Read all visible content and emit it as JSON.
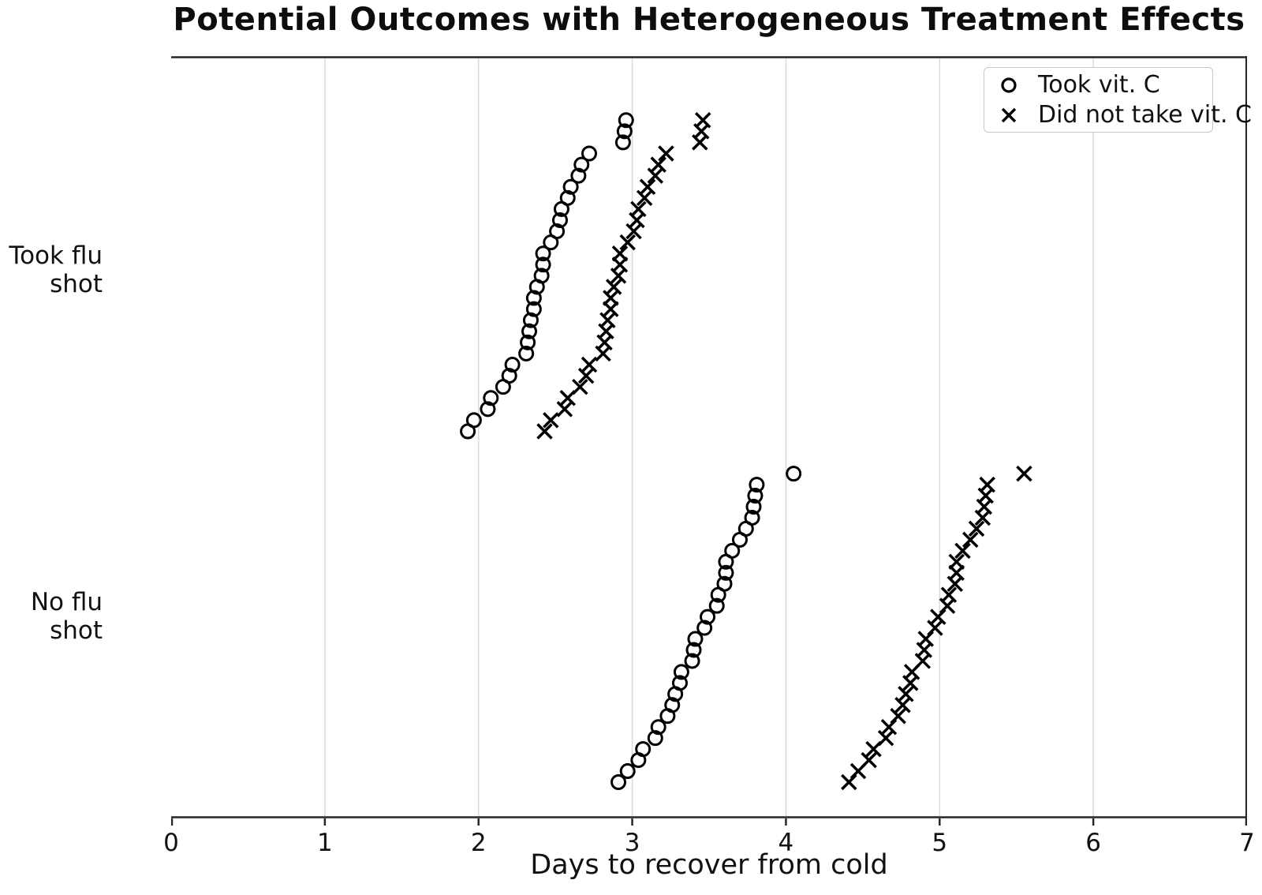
{
  "chart_data": {
    "type": "scatter",
    "title": "Potential Outcomes with Heterogeneous Treatment Effects",
    "xlabel": "Days to recover from cold",
    "xlim": [
      0,
      7
    ],
    "x_ticks": [
      0,
      1,
      2,
      3,
      4,
      5,
      6,
      7
    ],
    "x_gridlines": [
      1,
      2,
      3,
      4,
      5,
      6
    ],
    "grid": "vertical-only",
    "legend_position": "upper-right",
    "colors": {
      "marker": "#000000",
      "grid": "#dcdcdc",
      "spine": "#262626",
      "text": "#111111"
    },
    "legend": [
      {
        "marker": "circle",
        "label": "Took vit. C"
      },
      {
        "marker": "x",
        "label": "Did not take vit. C"
      }
    ],
    "groups": [
      {
        "label_lines": [
          "Took flu",
          "shot"
        ],
        "series": [
          {
            "name": "Took vit. C",
            "marker": "circle",
            "values": [
              1.93,
              1.97,
              2.06,
              2.08,
              2.16,
              2.2,
              2.22,
              2.31,
              2.32,
              2.33,
              2.34,
              2.36,
              2.36,
              2.38,
              2.41,
              2.42,
              2.42,
              2.47,
              2.51,
              2.53,
              2.54,
              2.58,
              2.6,
              2.65,
              2.67,
              2.72,
              2.94,
              2.95,
              2.96
            ]
          },
          {
            "name": "Did not take vit. C",
            "marker": "x",
            "values": [
              2.43,
              2.47,
              2.56,
              2.58,
              2.66,
              2.7,
              2.72,
              2.81,
              2.82,
              2.83,
              2.84,
              2.86,
              2.86,
              2.88,
              2.91,
              2.92,
              2.92,
              2.97,
              3.01,
              3.03,
              3.04,
              3.08,
              3.1,
              3.15,
              3.17,
              3.22,
              3.44,
              3.45,
              3.46
            ]
          }
        ]
      },
      {
        "label_lines": [
          "No flu",
          "shot"
        ],
        "series": [
          {
            "name": "Took vit. C",
            "marker": "circle",
            "values": [
              2.91,
              2.97,
              3.04,
              3.07,
              3.15,
              3.17,
              3.23,
              3.26,
              3.28,
              3.31,
              3.32,
              3.39,
              3.4,
              3.41,
              3.47,
              3.49,
              3.55,
              3.56,
              3.6,
              3.61,
              3.61,
              3.65,
              3.7,
              3.74,
              3.78,
              3.79,
              3.8,
              3.81,
              4.05
            ]
          },
          {
            "name": "Did not take vit. C",
            "marker": "x",
            "values": [
              4.41,
              4.47,
              4.54,
              4.57,
              4.65,
              4.67,
              4.73,
              4.76,
              4.78,
              4.81,
              4.82,
              4.89,
              4.9,
              4.91,
              4.97,
              4.99,
              5.05,
              5.06,
              5.1,
              5.11,
              5.11,
              5.15,
              5.2,
              5.24,
              5.28,
              5.29,
              5.3,
              5.31,
              5.55
            ]
          }
        ]
      }
    ]
  }
}
